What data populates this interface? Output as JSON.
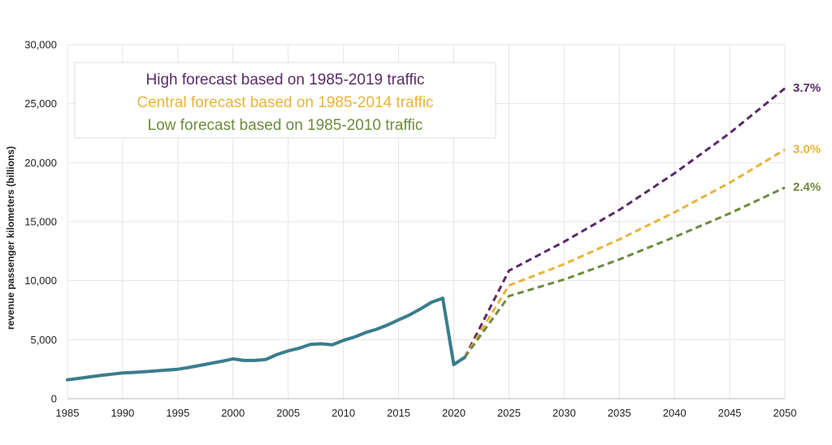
{
  "chart_data": {
    "type": "line",
    "xlabel": "",
    "ylabel": "revenue passenger kilometers (billions)",
    "xlim": [
      1985,
      2050
    ],
    "ylim": [
      0,
      30000
    ],
    "x_ticks": [
      "1985",
      "1990",
      "1995",
      "2000",
      "2005",
      "2010",
      "2015",
      "2020",
      "2025",
      "2030",
      "2035",
      "2040",
      "2045",
      "2050"
    ],
    "y_ticks": [
      "0",
      "5,000",
      "10,000",
      "15,000",
      "20,000",
      "25,000",
      "30,000"
    ],
    "grid": true,
    "legend_position": "top-left",
    "historical": {
      "color": "#3a7d8c",
      "x": [
        1985,
        1986,
        1987,
        1988,
        1989,
        1990,
        1991,
        1992,
        1993,
        1994,
        1995,
        1996,
        1997,
        1998,
        1999,
        2000,
        2001,
        2002,
        2003,
        2004,
        2005,
        2006,
        2007,
        2008,
        2009,
        2010,
        2011,
        2012,
        2013,
        2014,
        2015,
        2016,
        2017,
        2018,
        2019,
        2020,
        2021
      ],
      "y": [
        1600,
        1720,
        1850,
        1970,
        2080,
        2180,
        2230,
        2290,
        2360,
        2420,
        2500,
        2650,
        2820,
        3000,
        3170,
        3380,
        3240,
        3240,
        3330,
        3750,
        4050,
        4280,
        4600,
        4650,
        4570,
        4940,
        5220,
        5600,
        5880,
        6250,
        6680,
        7100,
        7620,
        8180,
        8520,
        2900,
        3500
      ]
    },
    "series": [
      {
        "name": "High forecast based on 1985-2019 traffic",
        "end_label": "3.7%",
        "color": "#5b2a6b",
        "x": [
          2021,
          2025,
          2030,
          2035,
          2040,
          2045,
          2050
        ],
        "y": [
          3500,
          10850,
          13300,
          16000,
          19100,
          22500,
          26300
        ]
      },
      {
        "name": "Central forecast based on 1985-2014 traffic",
        "end_label": "3.0%",
        "color": "#e8b43a",
        "x": [
          2021,
          2025,
          2030,
          2035,
          2040,
          2045,
          2050
        ],
        "y": [
          3500,
          9600,
          11400,
          13500,
          15800,
          18300,
          21100
        ]
      },
      {
        "name": "Low forecast based on 1985-2010 traffic",
        "end_label": "2.4%",
        "color": "#6e8b3d",
        "x": [
          2021,
          2025,
          2030,
          2035,
          2040,
          2045,
          2050
        ],
        "y": [
          3500,
          8700,
          10100,
          11800,
          13700,
          15700,
          17900
        ]
      }
    ]
  }
}
